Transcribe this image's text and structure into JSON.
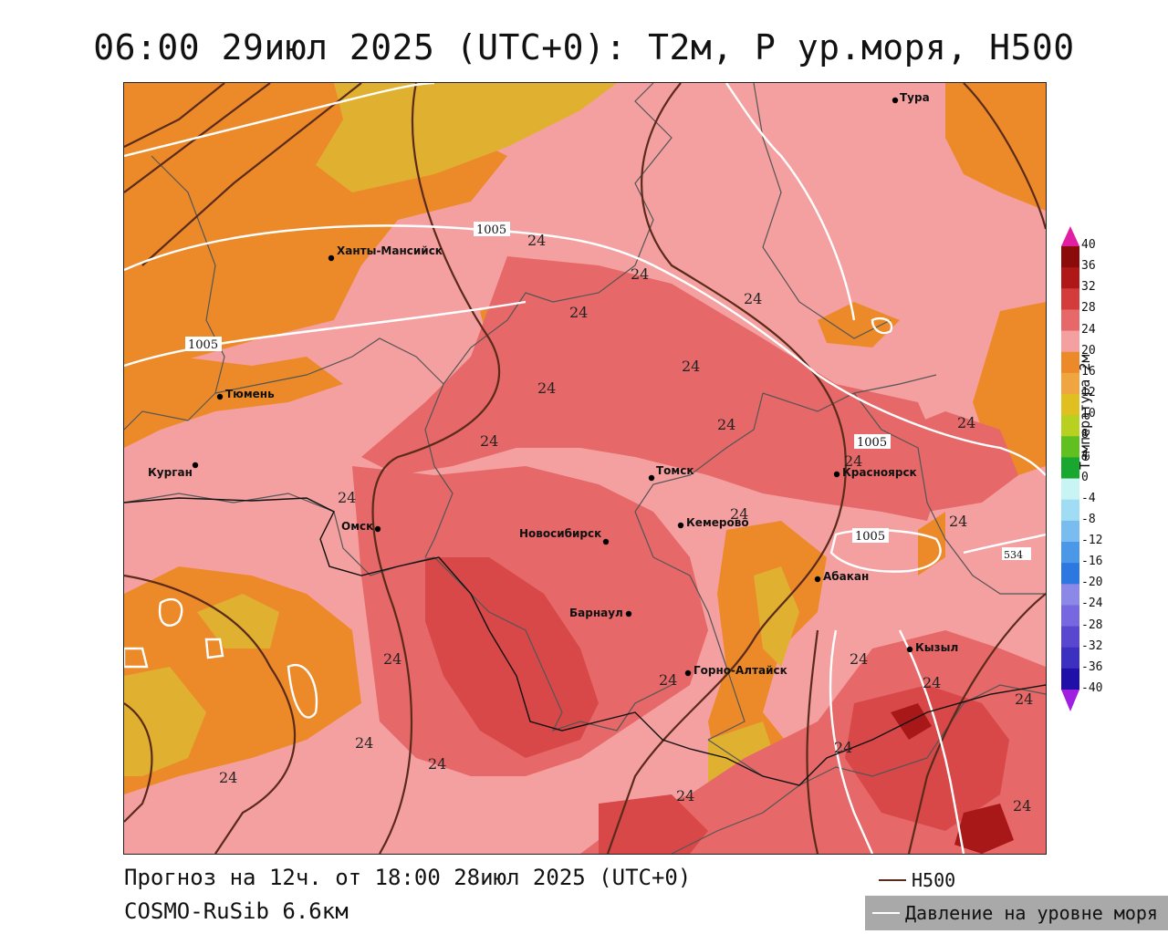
{
  "title": "06:00 29июл 2025 (UTC+0): T2м, P ур.моря, H500",
  "footer": {
    "forecast": "Прогноз на 12ч. от 18:00 28июл 2025 (UTC+0)",
    "model": "COSMO-RuSib 6.6км"
  },
  "legend": {
    "h500_label": "H500",
    "h500_color": "#5a2a1a",
    "pressure_label": "Давление на уровне моря",
    "pressure_color": "#ffffff"
  },
  "colorbar": {
    "title": "Температура 2м",
    "ticks": [
      "40",
      "36",
      "32",
      "28",
      "24",
      "20",
      "16",
      "12",
      "10",
      "8",
      "4",
      "0",
      "-4",
      "-8",
      "-12",
      "-16",
      "-20",
      "-24",
      "-28",
      "-32",
      "-36",
      "-40"
    ],
    "colors": [
      "#8b0a0a",
      "#b01818",
      "#d43c3c",
      "#e66868",
      "#f4a0a0",
      "#ec8a2a",
      "#f0a640",
      "#e0c020",
      "#b8d020",
      "#60c020",
      "#18a830",
      "#c8f4f4",
      "#a0dcf4",
      "#78bcf0",
      "#4c98e8",
      "#2c78e0",
      "#8c88e8",
      "#7868e0",
      "#5848d0",
      "#3c30c0",
      "#2010a8",
      "#9010d0"
    ],
    "top_arrow_color": "#e020a0",
    "bottom_arrow_color": "#a020e0"
  },
  "cities": [
    {
      "name": "Тура"
    },
    {
      "name": "Ханты-Мансийск"
    },
    {
      "name": "Тюмень"
    },
    {
      "name": "Курган"
    },
    {
      "name": "Омск"
    },
    {
      "name": "Новосибирск"
    },
    {
      "name": "Томск"
    },
    {
      "name": "Кемерово"
    },
    {
      "name": "Красноярск"
    },
    {
      "name": "Абакан"
    },
    {
      "name": "Барнаул"
    },
    {
      "name": "Горно-Алтайск"
    },
    {
      "name": "Кызыл"
    }
  ],
  "isotherm_labels": [
    "24",
    "24",
    "24",
    "24",
    "24",
    "24",
    "24",
    "24",
    "24",
    "24",
    "24",
    "24",
    "24",
    "24",
    "24",
    "24",
    "24",
    "24",
    "24",
    "24",
    "24",
    "24",
    "24",
    "24"
  ],
  "pressure_labels": [
    "1005",
    "1005",
    "1005",
    "1005",
    "534"
  ]
}
